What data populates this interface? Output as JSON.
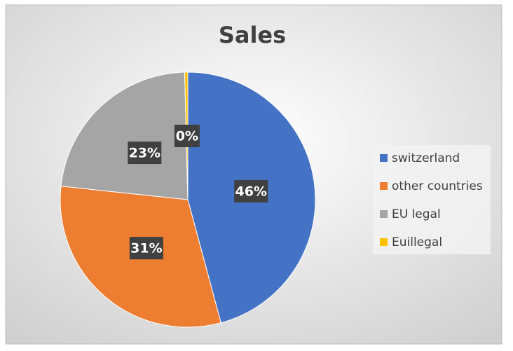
{
  "chart_data": {
    "type": "pie",
    "title": "Sales",
    "categories": [
      "switzerland",
      "other countries",
      "EU legal",
      "Euillegal"
    ],
    "values": [
      46,
      31,
      23,
      0.4
    ],
    "value_labels": [
      "46%",
      "31%",
      "23%",
      "0%"
    ],
    "colors": [
      "#4472c4",
      "#ed7d31",
      "#a5a5a5",
      "#ffc000"
    ],
    "legend": "right"
  }
}
